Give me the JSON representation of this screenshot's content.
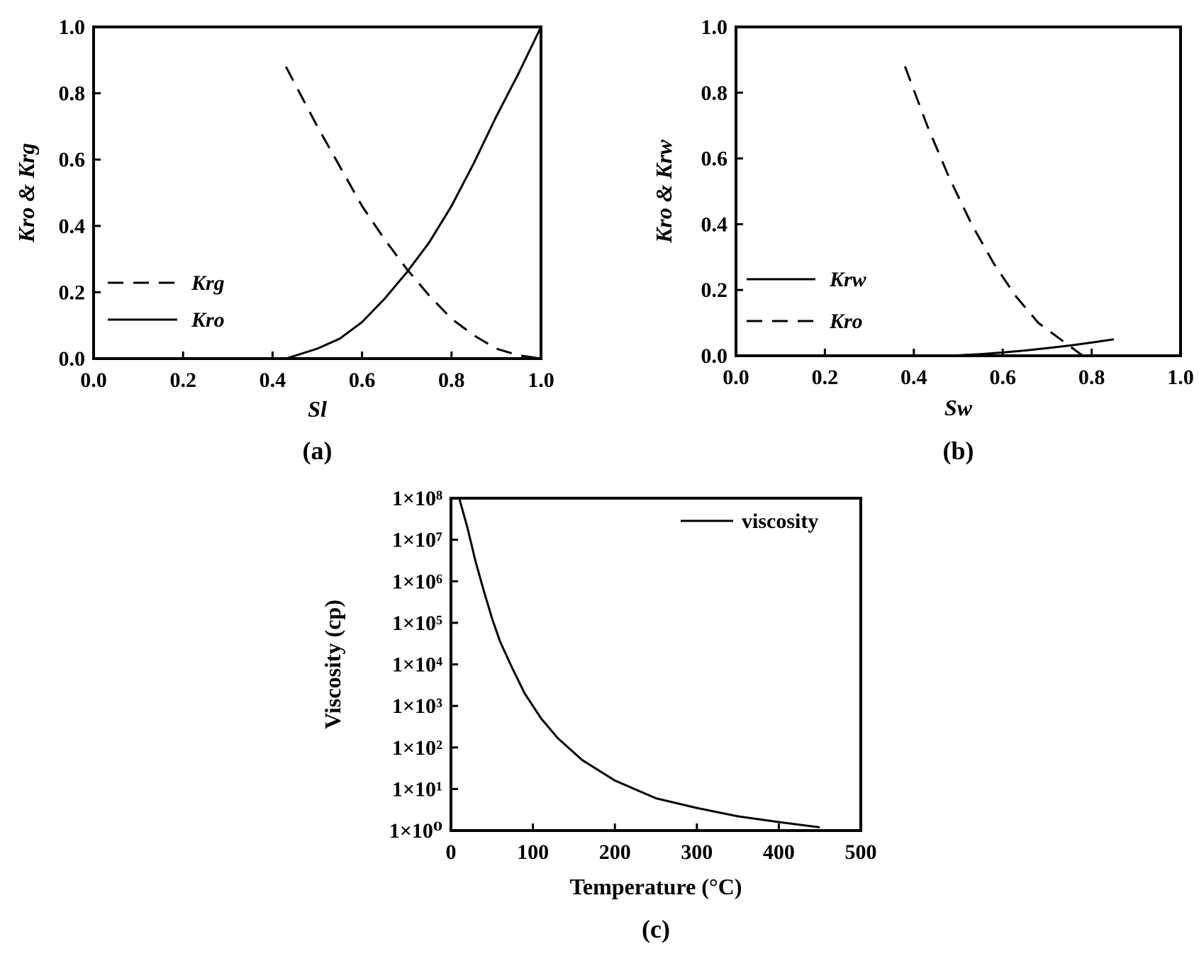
{
  "chart_data": [
    {
      "id": "a",
      "type": "line",
      "panel_label": "(a)",
      "xlabel": "Sl",
      "ylabel": "Kro & Krg",
      "xlim": [
        0,
        1
      ],
      "ylim": [
        0,
        1
      ],
      "xticks": [
        "0.0",
        "0.2",
        "0.4",
        "0.6",
        "0.8",
        "1.0"
      ],
      "yticks": [
        "0.0",
        "0.2",
        "0.4",
        "0.6",
        "0.8",
        "1.0"
      ],
      "legend_position": "left-lower",
      "series": [
        {
          "name": "Krg",
          "dash": true,
          "x": [
            0.43,
            0.5,
            0.55,
            0.6,
            0.65,
            0.7,
            0.75,
            0.8,
            0.85,
            0.9,
            0.95,
            1.0
          ],
          "y": [
            0.88,
            0.7,
            0.58,
            0.46,
            0.36,
            0.27,
            0.19,
            0.12,
            0.07,
            0.03,
            0.01,
            0.0
          ]
        },
        {
          "name": "Kro",
          "dash": false,
          "x": [
            0.43,
            0.5,
            0.55,
            0.6,
            0.65,
            0.7,
            0.75,
            0.8,
            0.85,
            0.9,
            0.95,
            1.0
          ],
          "y": [
            0.0,
            0.03,
            0.06,
            0.11,
            0.18,
            0.26,
            0.35,
            0.46,
            0.59,
            0.73,
            0.86,
            1.0
          ]
        }
      ]
    },
    {
      "id": "b",
      "type": "line",
      "panel_label": "(b)",
      "xlabel": "Sw",
      "ylabel": "Kro & Krw",
      "xlim": [
        0,
        1
      ],
      "ylim": [
        0,
        1
      ],
      "xticks": [
        "0.0",
        "0.2",
        "0.4",
        "0.6",
        "0.8",
        "1.0"
      ],
      "yticks": [
        "0.0",
        "0.2",
        "0.4",
        "0.6",
        "0.8",
        "1.0"
      ],
      "legend_position": "left-lower",
      "series": [
        {
          "name": "Krw",
          "dash": false,
          "x": [
            0.48,
            0.55,
            0.6,
            0.65,
            0.7,
            0.75,
            0.8,
            0.85
          ],
          "y": [
            0.0,
            0.005,
            0.01,
            0.016,
            0.023,
            0.031,
            0.04,
            0.05
          ]
        },
        {
          "name": "Kro",
          "dash": true,
          "x": [
            0.38,
            0.43,
            0.48,
            0.53,
            0.58,
            0.63,
            0.68,
            0.72,
            0.75,
            0.78
          ],
          "y": [
            0.88,
            0.7,
            0.54,
            0.4,
            0.28,
            0.18,
            0.1,
            0.06,
            0.03,
            0.0
          ]
        }
      ]
    },
    {
      "id": "c",
      "type": "line",
      "panel_label": "(c)",
      "xlabel": "Temperature (°C)",
      "ylabel": "Viscosity (cp)",
      "xlim": [
        0,
        500
      ],
      "ylim": [
        1,
        100000000
      ],
      "yscale": "log",
      "xticks": [
        "0",
        "100",
        "200",
        "300",
        "400",
        "500"
      ],
      "yticks": [
        "1×10⁰",
        "1×10¹",
        "1×10²",
        "1×10³",
        "1×10⁴",
        "1×10⁵",
        "1×10⁶",
        "1×10⁷",
        "1×10⁸"
      ],
      "legend_position": "top-right",
      "series": [
        {
          "name": "viscosity",
          "dash": false,
          "x": [
            10,
            20,
            30,
            40,
            50,
            60,
            75,
            90,
            110,
            130,
            160,
            200,
            250,
            300,
            350,
            400,
            450
          ],
          "y": [
            100000000,
            20000000,
            3000000,
            600000,
            130000,
            35000,
            8000,
            2000,
            500,
            170,
            50,
            16,
            6,
            3.5,
            2.2,
            1.6,
            1.2
          ]
        }
      ]
    }
  ]
}
